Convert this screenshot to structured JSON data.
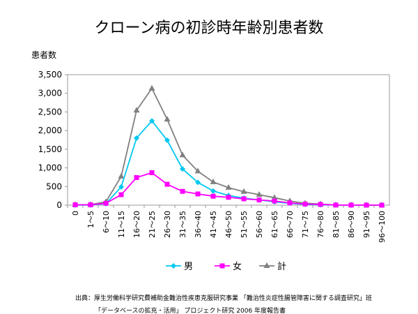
{
  "chart_data": {
    "type": "line",
    "title": "クローン病の初診時年齢別患者数",
    "ylabel": "患者数",
    "xlabel": "",
    "ylim": [
      0,
      3500
    ],
    "yticks": [
      0,
      500,
      1000,
      1500,
      2000,
      2500,
      3000,
      3500
    ],
    "ytick_labels": [
      "0",
      "500",
      "1,000",
      "1,500",
      "2,000",
      "2,500",
      "3,000",
      "3,500"
    ],
    "categories": [
      "0",
      "1～5",
      "6～10",
      "11～15",
      "16～20",
      "21～25",
      "26～30",
      "31～35",
      "36～40",
      "41～45",
      "46～50",
      "51～55",
      "56～60",
      "61～65",
      "66～70",
      "71～75",
      "76～80",
      "81～85",
      "86～90",
      "91～95",
      "96～100"
    ],
    "series": [
      {
        "name": "男",
        "color": "#00c8f0",
        "marker": "diamond",
        "values": [
          0,
          5,
          40,
          490,
          1800,
          2260,
          1740,
          970,
          610,
          380,
          260,
          190,
          140,
          90,
          50,
          20,
          10,
          2,
          0,
          0,
          0
        ]
      },
      {
        "name": "女",
        "color": "#ff00ff",
        "marker": "square",
        "values": [
          10,
          10,
          50,
          280,
          740,
          870,
          560,
          370,
          300,
          240,
          210,
          170,
          140,
          110,
          60,
          30,
          20,
          3,
          2,
          1,
          0
        ]
      },
      {
        "name": "計",
        "color": "#808080",
        "marker": "triangle",
        "values": [
          10,
          15,
          90,
          770,
          2540,
          3130,
          2300,
          1340,
          910,
          620,
          470,
          360,
          280,
          200,
          110,
          50,
          30,
          5,
          2,
          1,
          0
        ]
      }
    ],
    "legend_position": "bottom",
    "grid": false
  },
  "source": {
    "line1": "出典：厚生労働科学研究費補助金難治性疾患克服研究事業 「難治性炎症性腸管障害に関する調査研究」班",
    "line2": "「データベースの拡充・活用」 プロジェクト研究  2006 年度報告書"
  }
}
